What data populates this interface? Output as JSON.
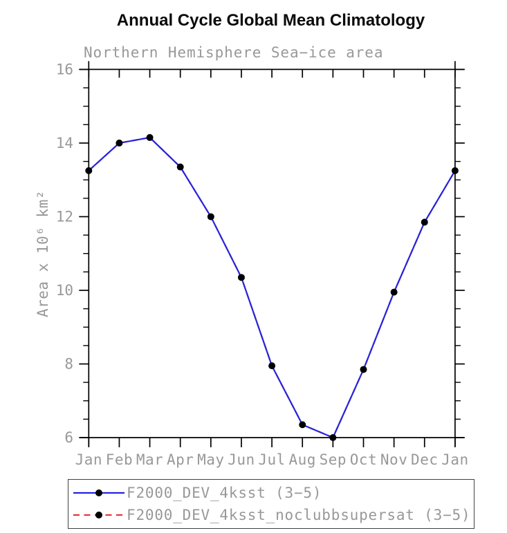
{
  "title": "Annual Cycle Global Mean Climatology",
  "subtitle": "Northern Hemisphere Sea−ice area",
  "chart_data": {
    "type": "line",
    "title": "Annual Cycle Global Mean Climatology",
    "subtitle": "Northern Hemisphere Sea−ice area",
    "ylabel": "Area x 10⁶ km²",
    "xlabel": "",
    "x_categories": [
      "Jan",
      "Feb",
      "Mar",
      "Apr",
      "May",
      "Jun",
      "Jul",
      "Aug",
      "Sep",
      "Oct",
      "Nov",
      "Dec",
      "Jan"
    ],
    "ylim": [
      6,
      16
    ],
    "y_major_ticks": [
      16,
      14,
      12,
      10,
      8,
      6
    ],
    "y_minor_step": 0.5,
    "grid": false,
    "legend_position": "bottom",
    "frame_color": "#000000",
    "label_color": "#989898",
    "series": [
      {
        "name": "F2000_DEV_4ksst (3−5)",
        "line_color": "#2424dd",
        "line_style": "solid",
        "marker": "filled-circle",
        "marker_color": "#000000",
        "values": [
          13.25,
          14.0,
          14.15,
          13.35,
          12.0,
          10.35,
          7.95,
          6.35,
          6.0,
          7.85,
          9.95,
          11.85,
          13.25
        ]
      },
      {
        "name": "F2000_DEV_4ksst_noclubbsupersat (3−5)",
        "line_color": "#ee3333",
        "line_style": "dashed",
        "marker": "filled-circle",
        "marker_color": "#000000",
        "overlaps_first_series": true,
        "values": [
          13.25,
          14.0,
          14.15,
          13.35,
          12.0,
          10.35,
          7.95,
          6.35,
          6.0,
          7.85,
          9.95,
          11.85,
          13.25
        ]
      }
    ]
  }
}
